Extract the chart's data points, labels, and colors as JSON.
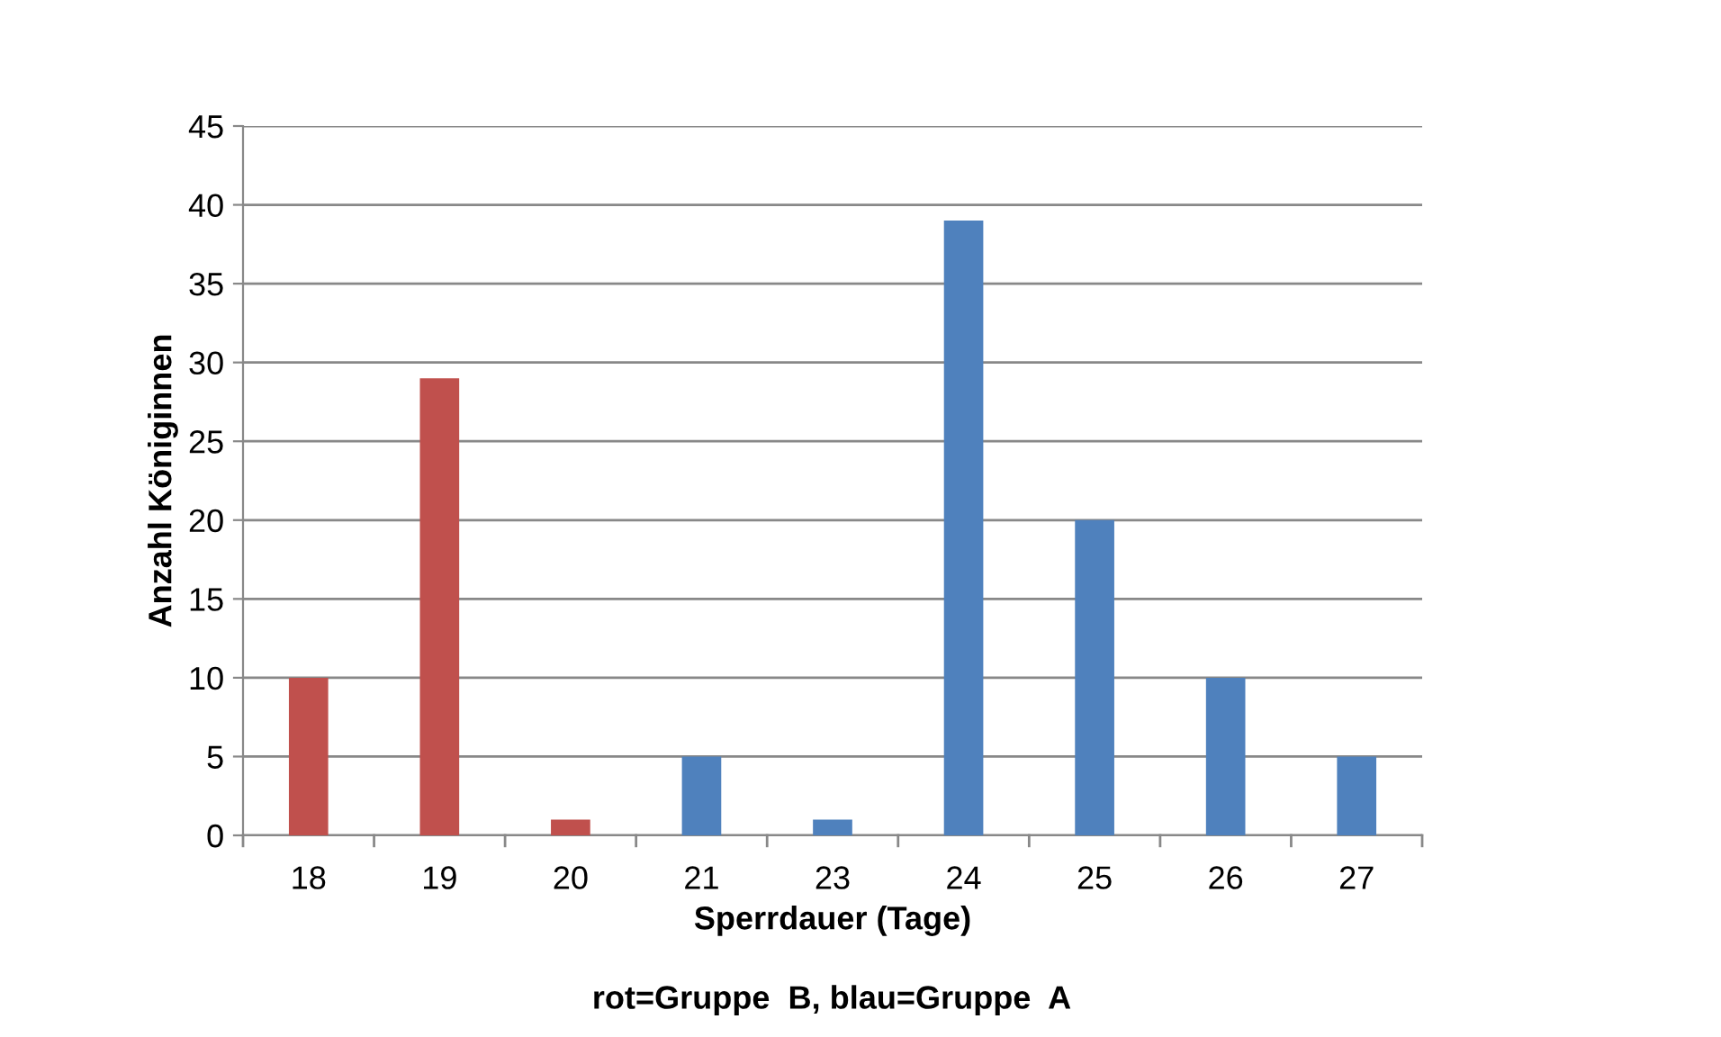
{
  "chart_data": {
    "type": "bar",
    "xlabel": "Sperrdauer (Tage)",
    "ylabel": "Anzahl Königinnen",
    "categories": [
      "18",
      "19",
      "20",
      "21",
      "23",
      "24",
      "25",
      "26",
      "27"
    ],
    "values": [
      10,
      29,
      1,
      5,
      1,
      39,
      20,
      10,
      5
    ],
    "colors": [
      "#c0504d",
      "#c0504d",
      "#c0504d",
      "#4f81bd",
      "#4f81bd",
      "#4f81bd",
      "#4f81bd",
      "#4f81bd",
      "#4f81bd"
    ],
    "ylim": [
      0,
      45
    ],
    "yticks": [
      0,
      5,
      10,
      15,
      20,
      25,
      30,
      35,
      40,
      45
    ],
    "grid": "y",
    "annotations": [
      "rot=Gruppe  B, blau=Gruppe  A"
    ]
  }
}
